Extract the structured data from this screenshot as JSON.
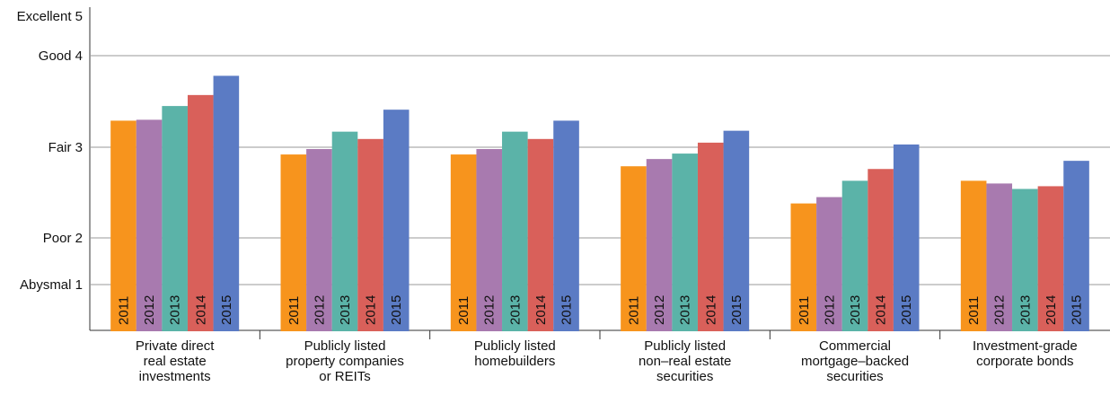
{
  "chart_data": {
    "type": "bar",
    "categories": [
      "Private direct\nreal estate\ninvestments",
      "Publicly listed\nproperty companies\nor REITs",
      "Publicly listed\nhomebuilders",
      "Publicly listed\nnon–real estate\nsecurities",
      "Commercial\nmortgage–backed\nsecurities",
      "Investment-grade\ncorporate bonds"
    ],
    "series": [
      {
        "name": "2011",
        "color": "#f7941d",
        "values": [
          3.29,
          2.92,
          2.92,
          2.79,
          2.38,
          2.63
        ]
      },
      {
        "name": "2012",
        "color": "#a87aaf",
        "values": [
          3.3,
          2.98,
          2.98,
          2.87,
          2.45,
          2.6
        ]
      },
      {
        "name": "2013",
        "color": "#5bb3a8",
        "values": [
          3.45,
          3.17,
          3.17,
          2.93,
          2.63,
          2.54
        ]
      },
      {
        "name": "2014",
        "color": "#d9605a",
        "values": [
          3.57,
          3.09,
          3.09,
          3.05,
          2.76,
          2.57
        ]
      },
      {
        "name": "2015",
        "color": "#5b7bc4",
        "values": [
          3.78,
          3.41,
          3.29,
          3.18,
          3.03,
          2.85
        ]
      }
    ],
    "ylim": [
      0,
      5.2
    ],
    "yticks": [
      {
        "value": 1,
        "label": "Abysmal 1"
      },
      {
        "value": 2,
        "label": "Poor 2"
      },
      {
        "value": 3,
        "label": "Fair 3"
      },
      {
        "value": 4,
        "label": "Good 4"
      },
      {
        "value": 5,
        "label": "Excellent 5"
      }
    ],
    "grid": true
  }
}
